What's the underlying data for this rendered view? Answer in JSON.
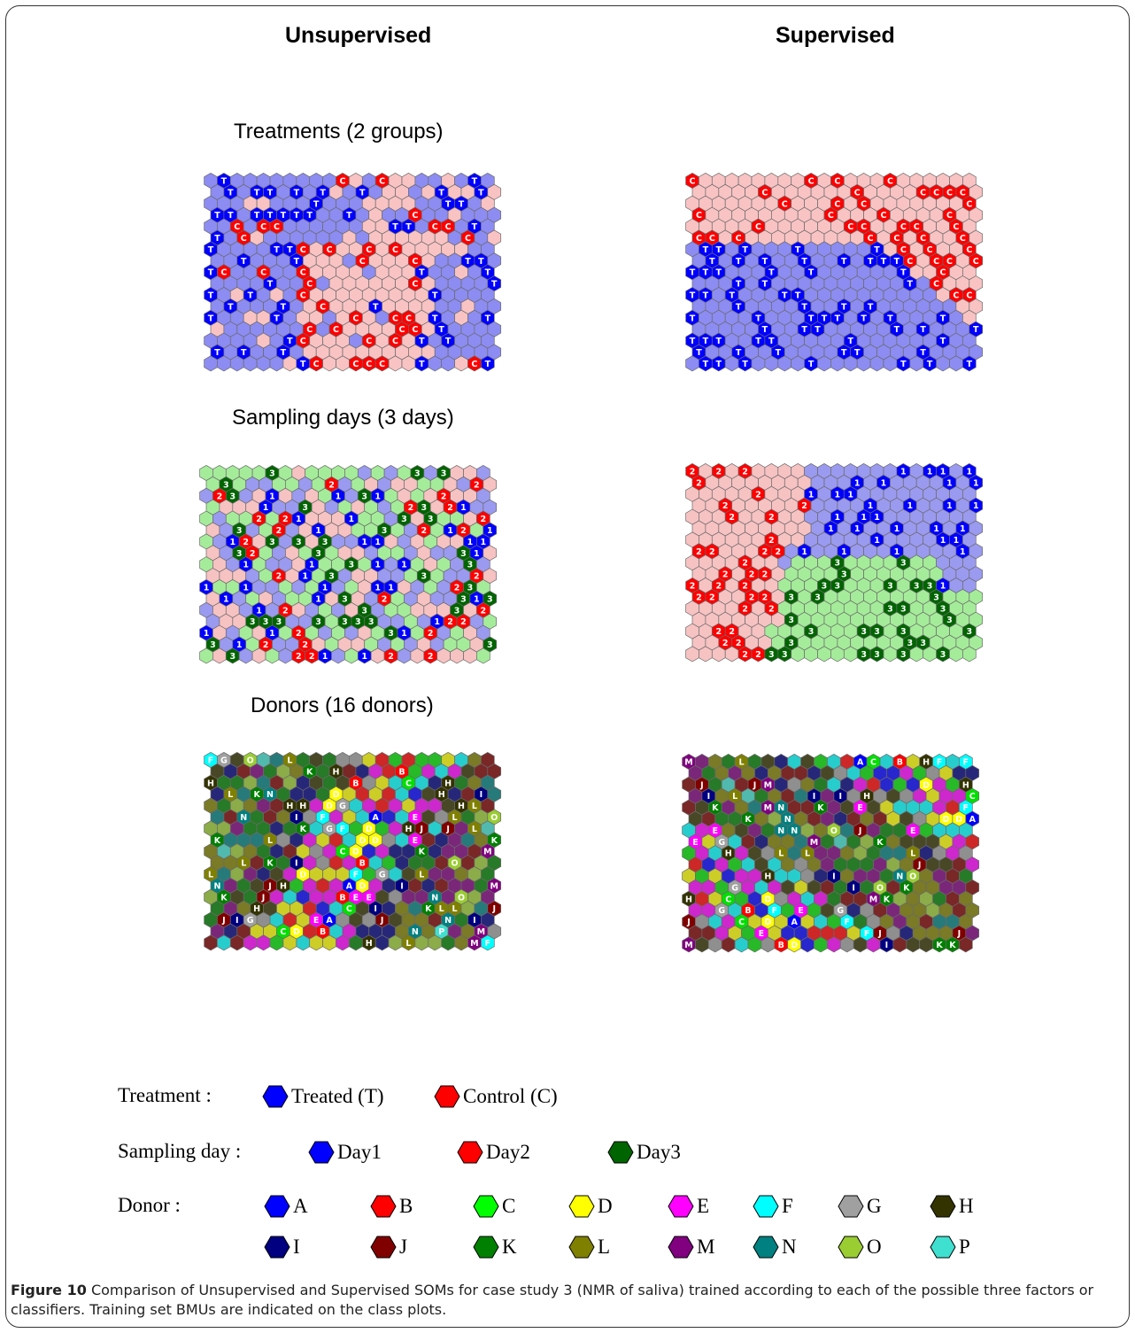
{
  "headings": {
    "unsupervised": "Unsupervised",
    "supervised": "Supervised"
  },
  "sections": [
    {
      "title": "Treatments (2 groups)"
    },
    {
      "title": "Sampling days (3 days)"
    },
    {
      "title": "Donors (16 donors)"
    }
  ],
  "legend": {
    "treatment": {
      "label": "Treatment :",
      "items": [
        {
          "text": "Treated (T)",
          "color": "#0000ff"
        },
        {
          "text": "Control (C)",
          "color": "#ff0000"
        }
      ]
    },
    "sampling": {
      "label": "Sampling day :",
      "items": [
        {
          "text": "Day1",
          "color": "#0000ff"
        },
        {
          "text": "Day2",
          "color": "#ff0000"
        },
        {
          "text": "Day3",
          "color": "#006400"
        }
      ]
    },
    "donor": {
      "label": "Donor :",
      "items": [
        {
          "text": "A",
          "color": "#0000ff"
        },
        {
          "text": "B",
          "color": "#ff0000"
        },
        {
          "text": "C",
          "color": "#00ff00"
        },
        {
          "text": "D",
          "color": "#ffff00"
        },
        {
          "text": "E",
          "color": "#ff00ff"
        },
        {
          "text": "F",
          "color": "#00ffff"
        },
        {
          "text": "G",
          "color": "#a0a0a0"
        },
        {
          "text": "H",
          "color": "#333300"
        },
        {
          "text": "I",
          "color": "#000080"
        },
        {
          "text": "J",
          "color": "#800000"
        },
        {
          "text": "K",
          "color": "#008000"
        },
        {
          "text": "L",
          "color": "#808000"
        },
        {
          "text": "M",
          "color": "#800080"
        },
        {
          "text": "N",
          "color": "#008080"
        },
        {
          "text": "O",
          "color": "#9acd32"
        },
        {
          "text": "P",
          "color": "#40e0d0"
        }
      ]
    }
  },
  "caption": {
    "label": "Figure 10",
    "text": "Comparison of Unsupervised and Supervised SOMs for case study 3 (NMR of saliva) trained according to each of the possible three factors or classifiers. Training set BMUs are indicated on the class plots."
  }
}
